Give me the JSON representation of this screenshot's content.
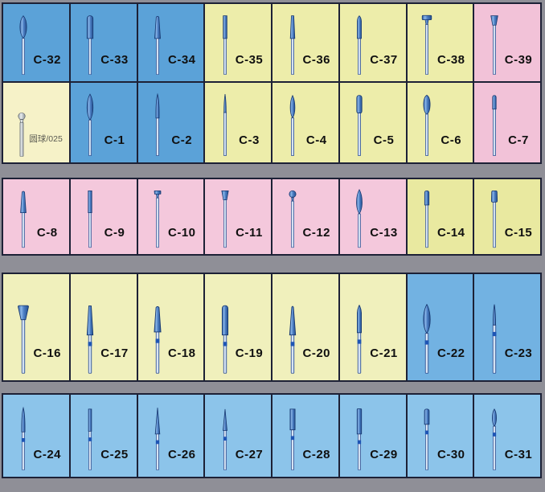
{
  "board": {
    "description_note": "",
    "colors": {
      "blue": "#5ba2d8",
      "blue_mid": "#72b2e2",
      "blue_light": "#8cc4ea",
      "yellow": "#ededaa",
      "yellow_soft": "#e9e9a0",
      "yellow_cream": "#f0f0bc",
      "yellow_pale": "#f6f2c8",
      "pink": "#f2c2d8",
      "pink_soft": "#f4c8dc",
      "background": "#8f8f97",
      "cell_border": "#1d2136",
      "label_color": "#101010"
    }
  },
  "grid": {
    "rows": [
      {
        "name": "row-1",
        "height": 100,
        "gap_after": 0,
        "bur_scale": 0.86,
        "cells": [
          {
            "id": "c-32",
            "code": "C-32",
            "color": "blue",
            "shape": "football"
          },
          {
            "id": "c-33",
            "code": "C-33",
            "color": "blue",
            "shape": "cylinder-round"
          },
          {
            "id": "c-34",
            "code": "C-34",
            "color": "blue",
            "shape": "taper-round"
          },
          {
            "id": "c-35",
            "code": "C-35",
            "color": "yellow",
            "shape": "fissure"
          },
          {
            "id": "c-36",
            "code": "C-36",
            "color": "yellow",
            "shape": "taper-fissure"
          },
          {
            "id": "c-37",
            "code": "C-37",
            "color": "yellow",
            "shape": "torpedo-short"
          },
          {
            "id": "c-38",
            "code": "C-38",
            "color": "yellow",
            "shape": "wheel"
          },
          {
            "id": "c-39",
            "code": "C-39",
            "color": "pink",
            "shape": "inverted-cone"
          }
        ]
      },
      {
        "name": "row-2",
        "height": 103,
        "gap_after": 17,
        "attached_to_previous": true,
        "bur_scale": 0.86,
        "cells": [
          {
            "id": "round-ball-025",
            "code": "圆球/025",
            "color": "yellow_pale",
            "shape": "ball-collar",
            "label_small": true,
            "scale": 0.62
          },
          {
            "id": "c-1",
            "code": "C-1",
            "color": "blue",
            "shape": "flame-long"
          },
          {
            "id": "c-2",
            "code": "C-2",
            "color": "blue",
            "shape": "needle"
          },
          {
            "id": "c-3",
            "code": "C-3",
            "color": "yellow",
            "shape": "needle-thin"
          },
          {
            "id": "c-4",
            "code": "C-4",
            "color": "yellow",
            "shape": "flame"
          },
          {
            "id": "c-5",
            "code": "C-5",
            "color": "yellow",
            "shape": "cylinder-bud"
          },
          {
            "id": "c-6",
            "code": "C-6",
            "color": "yellow",
            "shape": "egg"
          },
          {
            "id": "c-7",
            "code": "C-7",
            "color": "pink",
            "shape": "bud"
          }
        ]
      },
      {
        "name": "row-3",
        "height": 97,
        "gap_after": 21,
        "bur_scale": 0.86,
        "cells": [
          {
            "id": "c-8",
            "code": "C-8",
            "color": "pink_soft",
            "shape": "taper-round"
          },
          {
            "id": "c-9",
            "code": "C-9",
            "color": "pink_soft",
            "shape": "fissure"
          },
          {
            "id": "c-10",
            "code": "C-10",
            "color": "pink_soft",
            "shape": "wheel-small"
          },
          {
            "id": "c-11",
            "code": "C-11",
            "color": "pink_soft",
            "shape": "inverted-cone"
          },
          {
            "id": "c-12",
            "code": "C-12",
            "color": "pink_soft",
            "shape": "ball-small"
          },
          {
            "id": "c-13",
            "code": "C-13",
            "color": "pink_soft",
            "shape": "flame-long"
          },
          {
            "id": "c-14",
            "code": "C-14",
            "color": "yellow_soft",
            "shape": "cylinder-small-round"
          },
          {
            "id": "c-15",
            "code": "C-15",
            "color": "yellow_soft",
            "shape": "drum"
          }
        ]
      },
      {
        "name": "row-4",
        "height": 136,
        "gap_after": 14,
        "bur_scale": 0.72,
        "cells": [
          {
            "id": "c-16",
            "code": "C-16",
            "color": "yellow_cream",
            "shape": "inverted-cone-large"
          },
          {
            "id": "c-17",
            "code": "C-17",
            "color": "yellow_cream",
            "shape": "taper-long",
            "band": true
          },
          {
            "id": "c-18",
            "code": "C-18",
            "color": "yellow_cream",
            "shape": "taper-round",
            "band": true
          },
          {
            "id": "c-19",
            "code": "C-19",
            "color": "yellow_cream",
            "shape": "cylinder-round-long",
            "band": true
          },
          {
            "id": "c-20",
            "code": "C-20",
            "color": "yellow_cream",
            "shape": "taper-round-long",
            "band": true
          },
          {
            "id": "c-21",
            "code": "C-21",
            "color": "yellow_cream",
            "shape": "torpedo",
            "band": true
          },
          {
            "id": "c-22",
            "code": "C-22",
            "color": "blue_mid",
            "shape": "flame-long",
            "band": true
          },
          {
            "id": "c-23",
            "code": "C-23",
            "color": "blue_mid",
            "shape": "needle-thin",
            "band": true
          }
        ]
      },
      {
        "name": "row-5",
        "height": 106,
        "gap_after": 15,
        "bur_scale": 0.84,
        "cells": [
          {
            "id": "c-24",
            "code": "C-24",
            "color": "blue_light",
            "shape": "needle",
            "band": true
          },
          {
            "id": "c-25",
            "code": "C-25",
            "color": "blue_light",
            "shape": "fissure-narrow",
            "band": true
          },
          {
            "id": "c-26",
            "code": "C-26",
            "color": "blue_light",
            "shape": "taper-pointed-long",
            "band": true
          },
          {
            "id": "c-27",
            "code": "C-27",
            "color": "blue_light",
            "shape": "taper-pointed",
            "band": true
          },
          {
            "id": "c-28",
            "code": "C-28",
            "color": "blue_light",
            "shape": "cylinder-flat",
            "band": true
          },
          {
            "id": "c-29",
            "code": "C-29",
            "color": "blue_light",
            "shape": "cylinder-long",
            "band": true
          },
          {
            "id": "c-30",
            "code": "C-30",
            "color": "blue_light",
            "shape": "cylinder-small-round",
            "band": true
          },
          {
            "id": "c-31",
            "code": "C-31",
            "color": "blue_light",
            "shape": "flame-small",
            "band": true
          }
        ]
      }
    ]
  }
}
